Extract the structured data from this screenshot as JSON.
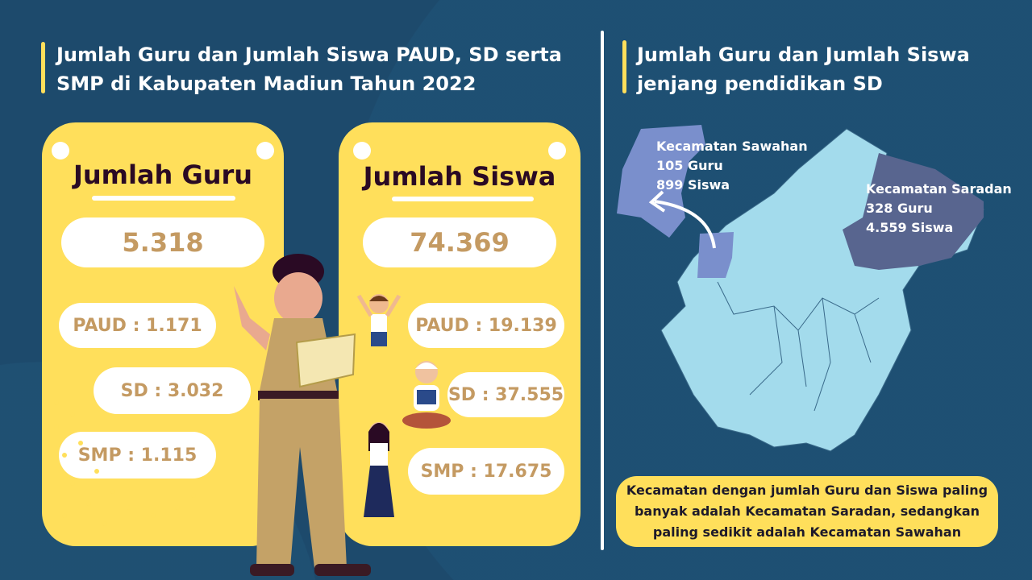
{
  "left": {
    "title": "Jumlah Guru dan Jumlah Siswa PAUD, SD serta SMP di Kabupaten Madiun Tahun 2022",
    "guru": {
      "heading": "Jumlah Guru",
      "total": "5.318",
      "paud": "PAUD : 1.171",
      "sd": "SD : 3.032",
      "smp": "SMP : 1.115"
    },
    "siswa": {
      "heading": "Jumlah Siswa",
      "total": "74.369",
      "paud": "PAUD : 19.139",
      "sd": "SD : 37.555",
      "smp": "SMP : 17.675"
    }
  },
  "right": {
    "title": "Jumlah Guru dan Jumlah Siswa jenjang pendidikan SD",
    "sawahan": {
      "name": "Kecamatan Sawahan",
      "guru": "105 Guru",
      "siswa": "899 Siswa"
    },
    "saradan": {
      "name": "Kecamatan Saradan",
      "guru": "328 Guru",
      "siswa": "4.559 Siswa"
    },
    "note": "Kecamatan dengan jumlah Guru dan Siswa paling banyak adalah Kecamatan Saradan, sedangkan paling sedikit adalah Kecamatan Sawahan"
  },
  "colors": {
    "background": "#1d4a6c",
    "card": "#ffdf5b",
    "number": "#c49a62",
    "map_base": "#a3dbec",
    "sawahan": "#7a8fcc",
    "saradan": "#58658f"
  }
}
